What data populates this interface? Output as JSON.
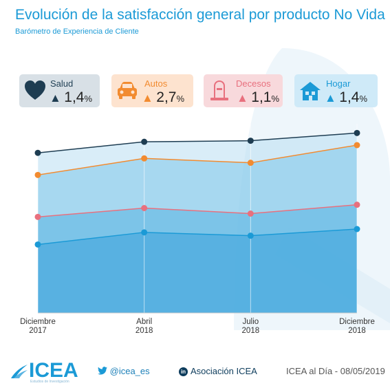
{
  "header": {
    "title": "Evolución de la satisfacción general por producto No Vida",
    "subtitle": "Barómetro de Experiencia de Cliente"
  },
  "cards": [
    {
      "name": "Salud",
      "value": "1,4",
      "unit": "%",
      "icon": "heart-icon",
      "bg": "#d8e0e6",
      "accent": "#1e3d52"
    },
    {
      "name": "Autos",
      "value": "2,7",
      "unit": "%",
      "icon": "car-icon",
      "bg": "#fde3cf",
      "accent": "#f28b30"
    },
    {
      "name": "Decesos",
      "value": "1,1",
      "unit": "%",
      "icon": "tombstone-icon",
      "bg": "#f8d9dc",
      "accent": "#e8707e"
    },
    {
      "name": "Hogar",
      "value": "1,4",
      "unit": "%",
      "icon": "house-icon",
      "bg": "#cfeaf8",
      "accent": "#1b9ad6"
    }
  ],
  "chart_data": {
    "type": "line",
    "categories": [
      "Diciembre 2017",
      "Abril 2018",
      "Julio 2018",
      "Diciembre 2018"
    ],
    "category_lines": [
      [
        "Diciembre",
        "2017"
      ],
      [
        "Abril",
        "2018"
      ],
      [
        "Julio",
        "2018"
      ],
      [
        "Diciembre",
        "2018"
      ]
    ],
    "series": [
      {
        "name": "Salud",
        "values": [
          7.75,
          7.85,
          7.86,
          7.93
        ],
        "color": "#1e3d52"
      },
      {
        "name": "Autos",
        "values": [
          7.55,
          7.7,
          7.66,
          7.82
        ],
        "color": "#f28b30"
      },
      {
        "name": "Decesos",
        "values": [
          7.17,
          7.25,
          7.2,
          7.28
        ],
        "color": "#e8707e"
      },
      {
        "name": "Hogar",
        "values": [
          6.92,
          7.03,
          7.0,
          7.06
        ],
        "color": "#1b9ad6"
      }
    ],
    "ylim": [
      6.3,
      8.2
    ],
    "grid": false,
    "legend": "top"
  },
  "footer": {
    "logo": "ICEA",
    "logo_tagline": "Estudios de Investigación",
    "twitter": "@icea_es",
    "linkedin": "Asociación ICEA",
    "date": "ICEA al Día - 08/05/2019"
  }
}
